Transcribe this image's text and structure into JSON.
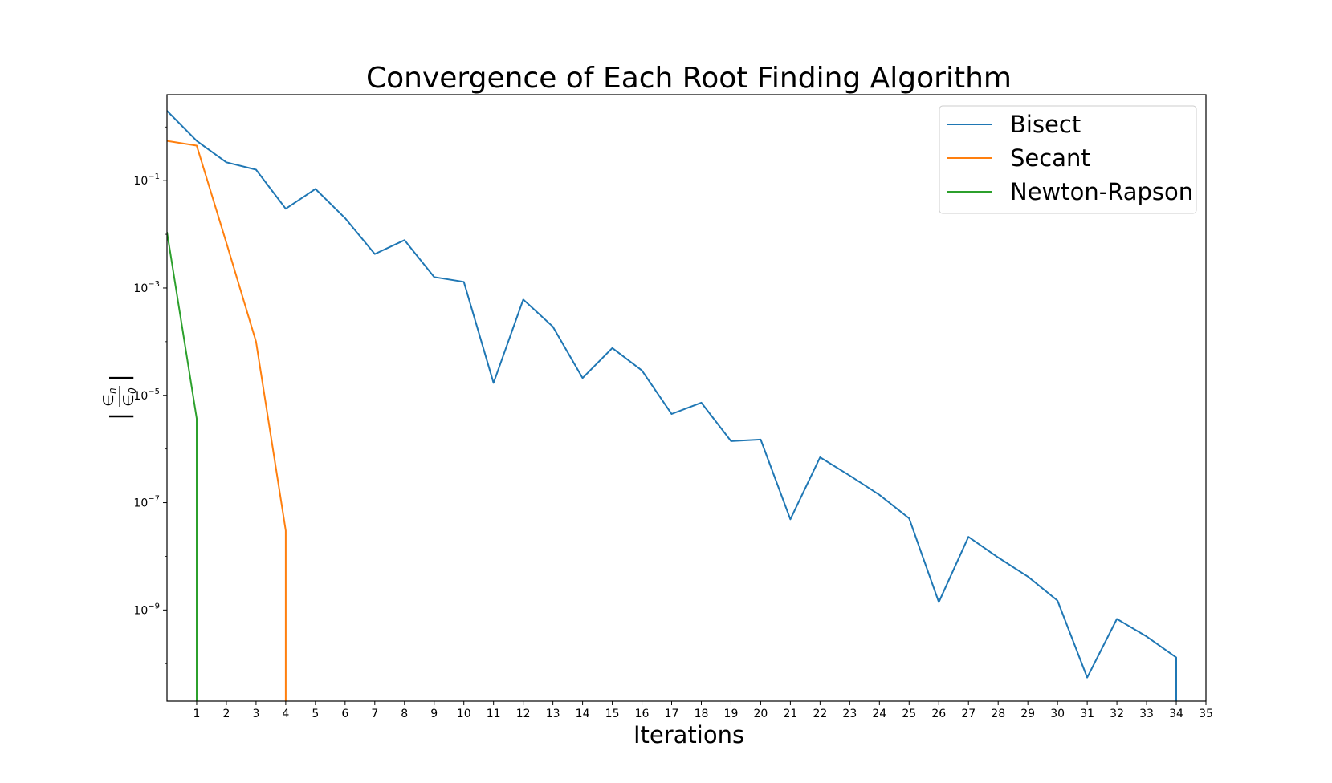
{
  "chart_data": {
    "type": "line",
    "title": "Convergence of Each Root Finding Algorithm",
    "xlabel": "Iterations",
    "ylabel": {
      "bar": "|",
      "numerator": "∈",
      "numerator_sub": "n",
      "denominator": "∈",
      "denominator_sub": "0"
    },
    "yscale": "log",
    "xlim": [
      0,
      35
    ],
    "ylim": [
      2e-11,
      4
    ],
    "x_ticks": [
      1,
      2,
      3,
      4,
      5,
      6,
      7,
      8,
      9,
      10,
      11,
      12,
      13,
      14,
      15,
      16,
      17,
      18,
      19,
      20,
      21,
      22,
      23,
      24,
      25,
      26,
      27,
      28,
      29,
      30,
      31,
      32,
      33,
      34,
      35
    ],
    "y_ticks": [
      {
        "value": 0.1,
        "base": "10",
        "exp": "−1"
      },
      {
        "value": 0.001,
        "base": "10",
        "exp": "−3"
      },
      {
        "value": 1e-05,
        "base": "10",
        "exp": "−5"
      },
      {
        "value": 1e-07,
        "base": "10",
        "exp": "−7"
      },
      {
        "value": 1e-09,
        "base": "10",
        "exp": "−9"
      }
    ],
    "grid": false,
    "legend_position": "top-right",
    "series": [
      {
        "name": "Bisect",
        "color": "#1f77b4",
        "x": [
          0,
          1,
          2,
          3,
          4,
          5,
          6,
          7,
          8,
          9,
          10,
          11,
          12,
          13,
          14,
          15,
          16,
          17,
          18,
          19,
          20,
          21,
          22,
          23,
          24,
          25,
          26,
          27,
          28,
          29,
          30,
          31,
          32,
          33,
          34,
          34
        ],
        "y": [
          2.0,
          0.55,
          0.22,
          0.16,
          0.03,
          0.07,
          0.02,
          0.0043,
          0.0078,
          0.0016,
          0.0013,
          1.7e-05,
          0.00061,
          0.00019,
          2.1e-05,
          7.6e-05,
          2.9e-05,
          4.5e-06,
          7.3e-06,
          1.4e-06,
          1.5e-06,
          4.9e-08,
          7e-07,
          3.2e-07,
          1.4e-07,
          5.1e-08,
          1.4e-09,
          2.3e-08,
          9.5e-09,
          4.2e-09,
          1.5e-09,
          5.5e-11,
          6.8e-10,
          3.2e-10,
          1.3e-10,
          2e-11
        ]
      },
      {
        "name": "Secant",
        "color": "#ff7f0e",
        "x": [
          0,
          1,
          2,
          3,
          4,
          4
        ],
        "y": [
          0.55,
          0.45,
          0.007,
          0.0001,
          3e-08,
          2e-11
        ]
      },
      {
        "name": "Newton-Rapson",
        "color": "#2ca02c",
        "x": [
          0,
          1,
          1
        ],
        "y": [
          0.011,
          3.7e-06,
          2e-11
        ]
      }
    ]
  }
}
